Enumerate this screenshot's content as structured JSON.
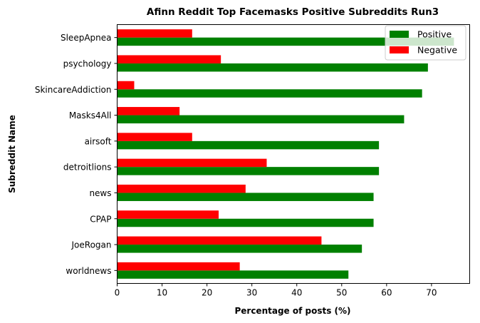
{
  "chart_data": {
    "type": "bar",
    "orientation": "horizontal",
    "title": "Afinn Reddit Top Facemasks Positive Subreddits Run3",
    "xlabel": "Percentage of posts (%)",
    "ylabel": "Subreddit Name",
    "categories": [
      "SleepApnea",
      "psychology",
      "SkincareAddiction",
      "Masks4All",
      "airsoft",
      "detroitlions",
      "news",
      "CPAP",
      "JoeRogan",
      "worldnews"
    ],
    "series": [
      {
        "name": "Positive",
        "color": "#008000",
        "values": [
          75.0,
          69.2,
          67.9,
          63.9,
          58.3,
          58.3,
          57.1,
          57.1,
          54.5,
          51.5
        ]
      },
      {
        "name": "Negative",
        "color": "#ff0000",
        "values": [
          16.7,
          23.1,
          3.8,
          13.9,
          16.7,
          33.3,
          28.6,
          22.6,
          45.5,
          27.3
        ]
      }
    ],
    "xlim": [
      0,
      78.5
    ],
    "xticks": [
      0,
      10,
      20,
      30,
      40,
      50,
      60,
      70
    ],
    "grid": false,
    "legend_position": "upper right"
  }
}
